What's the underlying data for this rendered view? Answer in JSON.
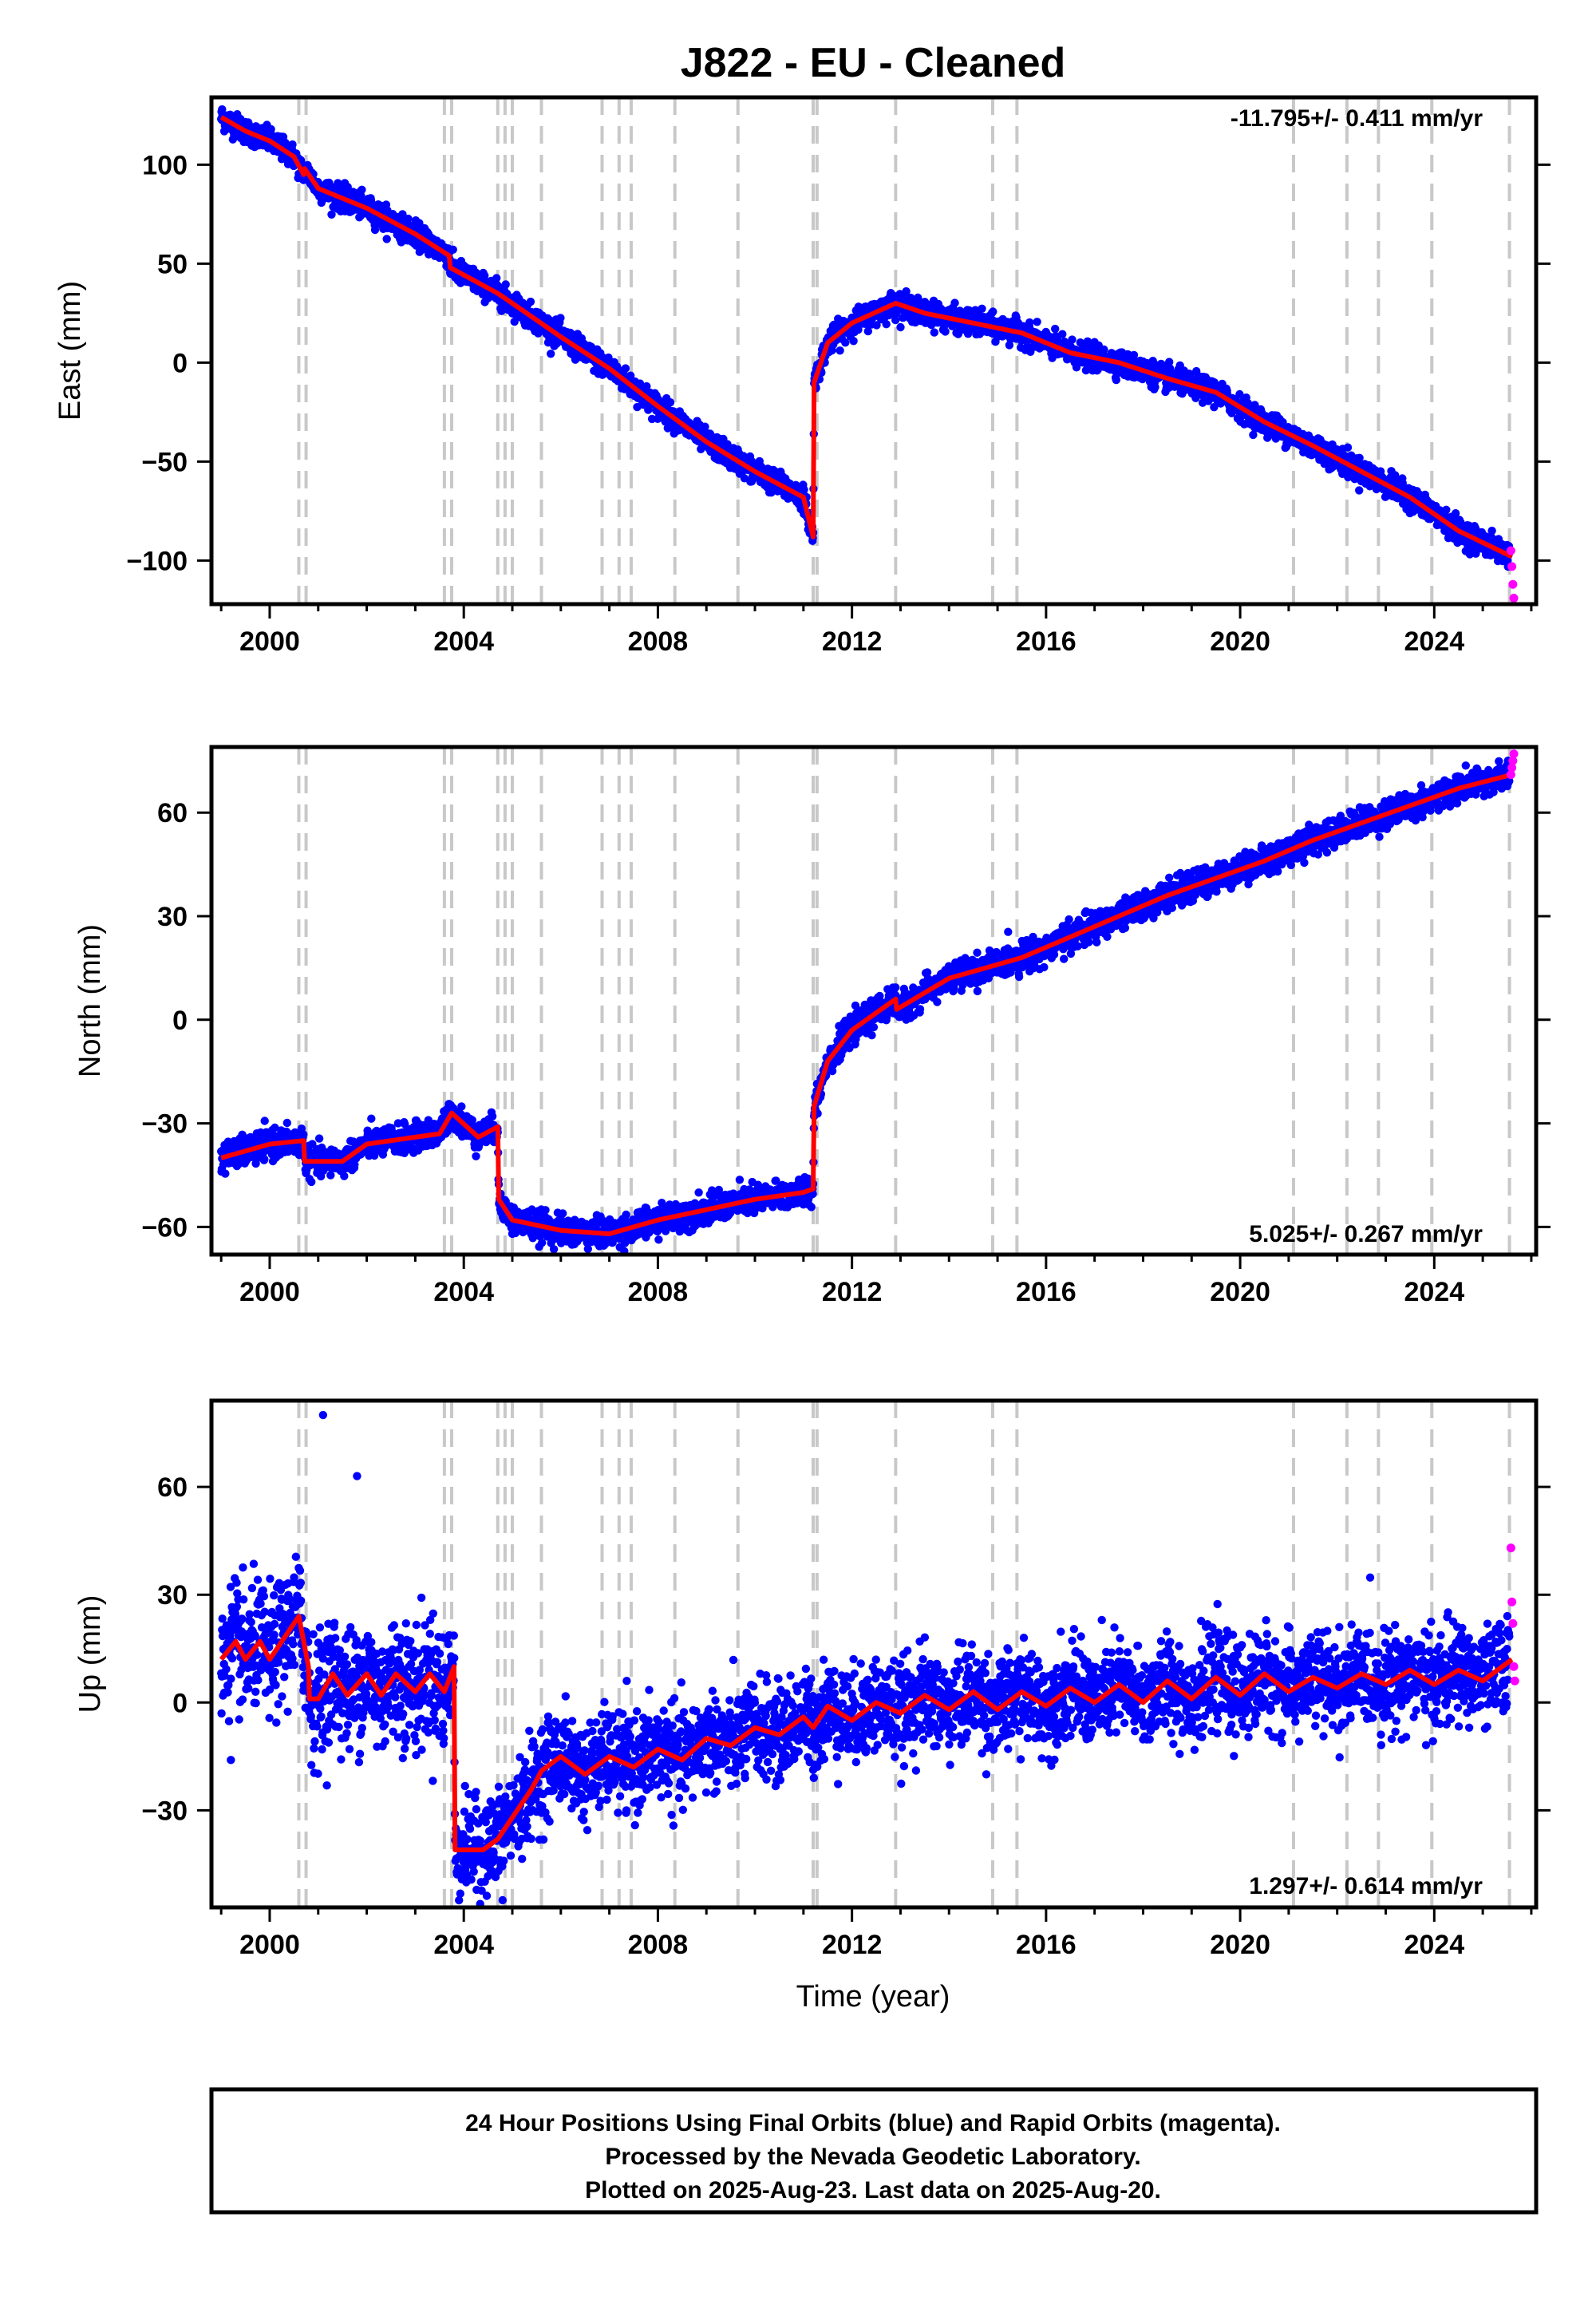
{
  "title": "J822  - EU - Cleaned",
  "xlabel": "Time (year)",
  "footer": [
    "24 Hour Positions Using Final Orbits (blue) and Rapid Orbits (magenta).",
    "Processed by the Nevada Geodetic Laboratory.",
    "Plotted on 2025-Aug-23. Last data on 2025-Aug-20."
  ],
  "colors": {
    "final": "#0000ff",
    "rapid": "#ff00ff",
    "model": "#ff0000",
    "steps": "#c8c8c8"
  },
  "chart_data": [
    {
      "type": "scatter",
      "ylabel": "East (mm)",
      "rate_label": "-11.795+/- 0.411 mm/yr",
      "rate_position": "top-right",
      "xlim": [
        1998.8,
        2026.1
      ],
      "ylim": [
        -122,
        134
      ],
      "xticks": [
        2000,
        2004,
        2008,
        2012,
        2016,
        2020,
        2024
      ],
      "yticks": [
        -100,
        -50,
        0,
        50,
        100
      ],
      "ytick_labels": [
        "−100",
        "−50",
        "0",
        "50",
        "100"
      ],
      "step_lines": [
        2000.6,
        2000.75,
        2003.6,
        2003.75,
        2004.7,
        2004.85,
        2005.0,
        2005.6,
        2006.85,
        2007.2,
        2007.45,
        2008.35,
        2009.65,
        2011.2,
        2011.28,
        2012.9,
        2014.9,
        2015.4,
        2021.1,
        2022.2,
        2022.85,
        2023.95,
        2025.55
      ],
      "model": {
        "x": [
          1999.0,
          1999.5,
          2000.0,
          2000.5,
          2000.7,
          2000.72,
          2001.0,
          2002.0,
          2003.0,
          2003.7,
          2003.72,
          2004.7,
          2005.0,
          2006.0,
          2007.0,
          2008.0,
          2009.0,
          2010.0,
          2011.0,
          2011.2,
          2011.22,
          2011.5,
          2012.0,
          2012.9,
          2013.5,
          2014.5,
          2015.5,
          2016.5,
          2017.5,
          2018.5,
          2019.5,
          2020.5,
          2021.5,
          2022.5,
          2023.5,
          2024.5,
          2025.6
        ],
        "y": [
          124,
          117,
          112,
          104,
          95,
          98,
          88,
          78,
          65,
          54,
          48,
          35,
          30,
          13,
          -3,
          -22,
          -40,
          -55,
          -68,
          -88,
          -10,
          10,
          20,
          30,
          25,
          20,
          15,
          5,
          0,
          -8,
          -15,
          -30,
          -42,
          -55,
          -68,
          -85,
          -98
        ]
      },
      "final": {
        "noise": 3.0,
        "extent": [
          1999.0,
          2025.55
        ]
      },
      "rapid": {
        "x": [
          2025.58,
          2025.6,
          2025.62,
          2025.64
        ],
        "y": [
          -95,
          -103,
          -112,
          -119
        ]
      },
      "tick_side": "bottom"
    },
    {
      "type": "scatter",
      "ylabel": "North (mm)",
      "rate_label": "5.025+/- 0.267 mm/yr",
      "rate_position": "bottom-right",
      "xlim": [
        1998.8,
        2026.1
      ],
      "ylim": [
        -68,
        79
      ],
      "xticks": [
        2000,
        2004,
        2008,
        2012,
        2016,
        2020,
        2024
      ],
      "yticks": [
        -60,
        -30,
        0,
        30,
        60
      ],
      "ytick_labels": [
        "−60",
        "−30",
        "0",
        "30",
        "60"
      ],
      "step_lines": [
        2000.6,
        2000.75,
        2003.6,
        2003.75,
        2004.7,
        2004.85,
        2005.0,
        2005.6,
        2006.85,
        2007.2,
        2007.45,
        2008.35,
        2009.65,
        2011.2,
        2011.28,
        2012.9,
        2014.9,
        2015.4,
        2021.1,
        2022.2,
        2022.85,
        2023.95,
        2025.55
      ],
      "model": {
        "x": [
          1999.0,
          1999.5,
          2000.0,
          2000.7,
          2000.72,
          2001.5,
          2002.0,
          2003.0,
          2003.5,
          2003.75,
          2004.3,
          2004.7,
          2004.72,
          2005.0,
          2006.0,
          2007.0,
          2008.0,
          2009.0,
          2010.0,
          2011.0,
          2011.2,
          2011.22,
          2011.5,
          2012.0,
          2012.9,
          2012.92,
          2014.0,
          2015.5,
          2016.5,
          2017.5,
          2018.5,
          2019.5,
          2020.5,
          2021.5,
          2022.5,
          2023.5,
          2024.5,
          2025.6
        ],
        "y": [
          -40,
          -38,
          -36,
          -35,
          -41,
          -41,
          -36,
          -34,
          -33,
          -27,
          -34,
          -31,
          -52,
          -58,
          -61,
          -62,
          -58,
          -55,
          -52,
          -50,
          -49,
          -25,
          -12,
          -3,
          6,
          3,
          12,
          18,
          24,
          30,
          36,
          41,
          46,
          52,
          57,
          62,
          67,
          71
        ]
      },
      "final": {
        "noise": 2.0,
        "extent": [
          1999.0,
          2025.55
        ]
      },
      "rapid": {
        "x": [
          2025.58,
          2025.6,
          2025.62,
          2025.64
        ],
        "y": [
          71,
          73,
          75,
          77
        ]
      },
      "tick_side": "bottom"
    },
    {
      "type": "scatter",
      "ylabel": "Up (mm)",
      "rate_label": "1.297+/- 0.614 mm/yr",
      "rate_position": "bottom-right",
      "xlim": [
        1998.8,
        2026.1
      ],
      "ylim": [
        -57,
        84
      ],
      "xticks": [
        2000,
        2004,
        2008,
        2012,
        2016,
        2020,
        2024
      ],
      "yticks": [
        -30,
        0,
        30,
        60
      ],
      "ytick_labels": [
        "−30",
        "0",
        "30",
        "60"
      ],
      "step_lines": [
        2000.6,
        2000.75,
        2003.6,
        2003.75,
        2004.7,
        2004.85,
        2005.0,
        2005.6,
        2006.85,
        2007.2,
        2007.45,
        2008.35,
        2009.65,
        2011.2,
        2011.28,
        2012.9,
        2014.9,
        2015.4,
        2021.1,
        2022.2,
        2022.85,
        2023.95,
        2025.55
      ],
      "model": {
        "x": [
          1999.0,
          1999.3,
          1999.5,
          1999.8,
          2000.0,
          2000.3,
          2000.6,
          2000.8,
          2000.82,
          2001.0,
          2001.3,
          2001.6,
          2002.0,
          2002.3,
          2002.6,
          2003.0,
          2003.3,
          2003.6,
          2003.8,
          2003.82,
          2004.4,
          2004.7,
          2005.0,
          2005.4,
          2005.6,
          2006.0,
          2006.5,
          2007.0,
          2007.5,
          2008.0,
          2008.5,
          2009.0,
          2009.5,
          2010.0,
          2010.5,
          2011.0,
          2011.2,
          2011.5,
          2012.0,
          2012.5,
          2013.0,
          2013.5,
          2014.0,
          2014.5,
          2015.0,
          2015.5,
          2016.0,
          2016.5,
          2017.0,
          2017.5,
          2018.0,
          2018.5,
          2019.0,
          2019.5,
          2020.0,
          2020.5,
          2021.0,
          2021.5,
          2022.0,
          2022.5,
          2023.0,
          2023.5,
          2024.0,
          2024.5,
          2025.0,
          2025.6
        ],
        "y": [
          12,
          17,
          12,
          17,
          12,
          18,
          24,
          10,
          1,
          1,
          8,
          2,
          8,
          2,
          8,
          3,
          8,
          3,
          10,
          -41,
          -41,
          -38,
          -32,
          -24,
          -19,
          -15,
          -20,
          -15,
          -18,
          -13,
          -16,
          -10,
          -12,
          -7,
          -9,
          -4,
          -7,
          -1,
          -5,
          0,
          -3,
          2,
          -2,
          3,
          -2,
          3,
          -1,
          4,
          0,
          5,
          0,
          6,
          1,
          7,
          2,
          8,
          3,
          7,
          4,
          8,
          5,
          9,
          5,
          9,
          6,
          12
        ]
      },
      "final": {
        "noise": 6.5,
        "extent": [
          1999.0,
          2025.55
        ]
      },
      "outliers": {
        "x": [
          2001.1,
          2001.8,
          1999.2,
          2004.8
        ],
        "y": [
          80,
          63,
          -16,
          -55
        ]
      },
      "rapid": {
        "x": [
          2025.58,
          2025.6,
          2025.62,
          2025.64,
          2025.66
        ],
        "y": [
          43,
          28,
          22,
          10,
          6
        ]
      },
      "tick_side": "bottom"
    }
  ]
}
